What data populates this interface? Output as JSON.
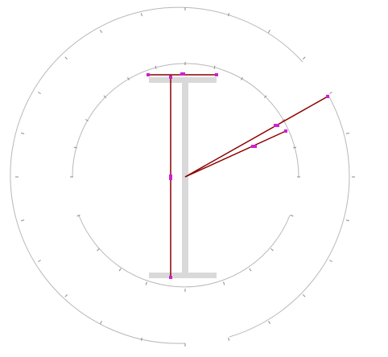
{
  "diagram": {
    "background": "#ffffff",
    "colors": {
      "arc": "#b8b8b8",
      "tick": "#9a9a9a",
      "beam": "#d9d9d9",
      "dimension": "#8b0000",
      "grip": "#d020d0"
    },
    "elements": {
      "outer_arc": "outer-arc",
      "inner_arc": "inner-arc",
      "ibeam": "ibeam-section",
      "dimension_height": "height-dimension",
      "dimension_flange": "flange-width-dimension",
      "radius_lines": "radius-lines"
    }
  }
}
